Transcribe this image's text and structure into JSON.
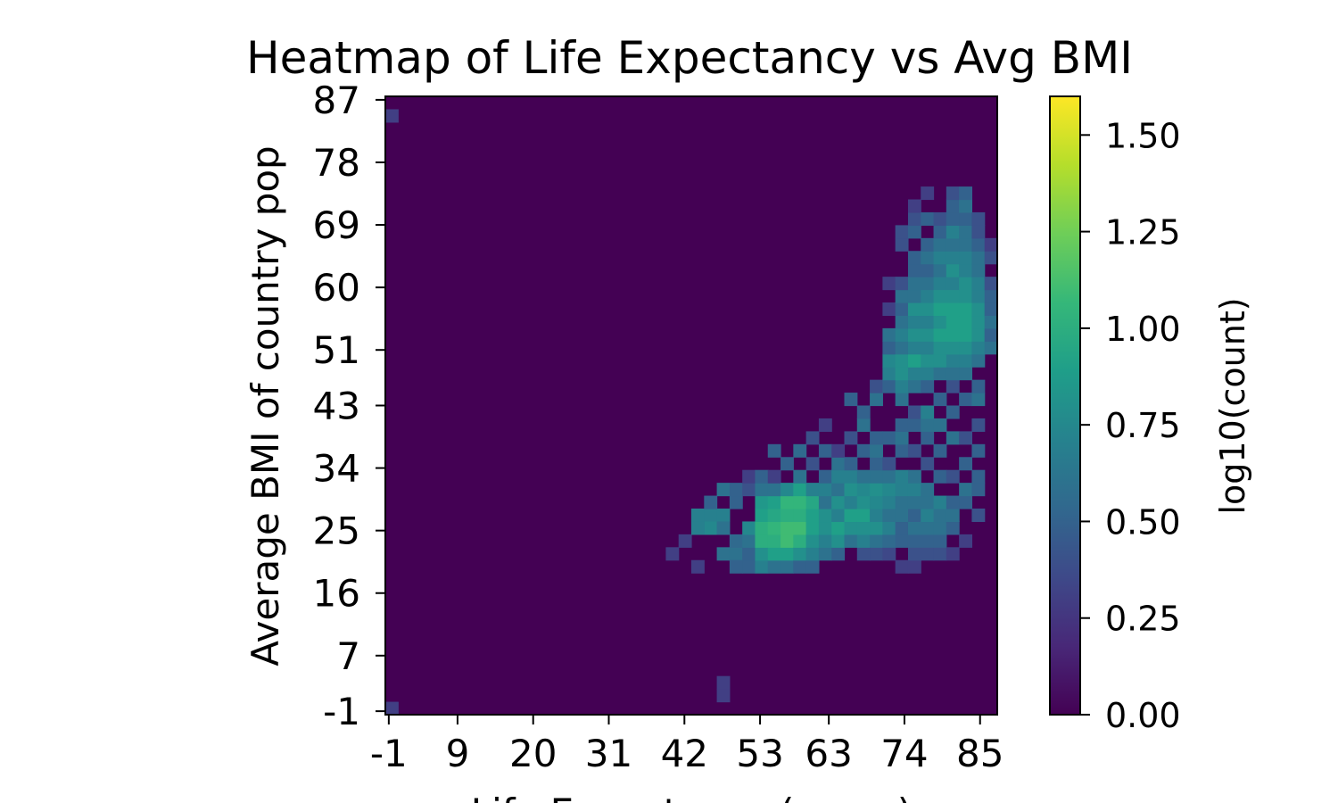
{
  "chart_data": {
    "type": "heatmap",
    "title": "Heatmap of Life Expectancy vs Avg BMI",
    "xlabel": "Life Expectancy (years)",
    "ylabel": "Average BMI of country pop",
    "x_ticks": [
      "-1",
      "9",
      "20",
      "31",
      "42",
      "53",
      "63",
      "74",
      "85"
    ],
    "y_ticks": [
      "-1",
      "7",
      "16",
      "25",
      "34",
      "43",
      "51",
      "60",
      "69",
      "78",
      "87"
    ],
    "xlim": [
      -1.5,
      87.5
    ],
    "ylim": [
      -1.5,
      87.5
    ],
    "bins": [
      48,
      48
    ],
    "colorbar": {
      "label": "log10(count)",
      "ticks": [
        "0.00",
        "0.25",
        "0.50",
        "0.75",
        "1.00",
        "1.25",
        "1.50"
      ],
      "range": [
        0,
        1.6
      ],
      "colormap": "viridis"
    },
    "colormap_stops": [
      "#440154",
      "#482878",
      "#3e4989",
      "#31688e",
      "#26828e",
      "#1f9e89",
      "#35b779",
      "#6ece58",
      "#b5de2b",
      "#fde725"
    ],
    "cells": [
      [
        0,
        0,
        0.3
      ],
      [
        0,
        46,
        0.3
      ],
      [
        26,
        2,
        0.3
      ],
      [
        26,
        1,
        0.3
      ],
      [
        23,
        13,
        0.3
      ],
      [
        22,
        12,
        0.3
      ],
      [
        24,
        11,
        0.3
      ],
      [
        24,
        15,
        0.7
      ],
      [
        25,
        15,
        0.7
      ],
      [
        26,
        15,
        0.7
      ],
      [
        25,
        14,
        0.75
      ],
      [
        24,
        14,
        0.7
      ],
      [
        26,
        14,
        0.6
      ],
      [
        27,
        16,
        0.5
      ],
      [
        25,
        16,
        0.5
      ],
      [
        26,
        17,
        0.6
      ],
      [
        27,
        17,
        0.5
      ],
      [
        28,
        17,
        0.4
      ],
      [
        28,
        18,
        0.3
      ],
      [
        26,
        12,
        0.6
      ],
      [
        27,
        12,
        0.6
      ],
      [
        27,
        13,
        0.55
      ],
      [
        27,
        11,
        0.5
      ],
      [
        28,
        11,
        0.5
      ],
      [
        28,
        12,
        0.5
      ],
      [
        28,
        13,
        0.6
      ],
      [
        28,
        14,
        0.75
      ],
      [
        29,
        11,
        0.7
      ],
      [
        29,
        12,
        0.8
      ],
      [
        29,
        13,
        1.0
      ],
      [
        29,
        14,
        1.0
      ],
      [
        29,
        15,
        0.9
      ],
      [
        29,
        16,
        0.85
      ],
      [
        29,
        17,
        0.6
      ],
      [
        29,
        18,
        0.5
      ],
      [
        30,
        11,
        0.6
      ],
      [
        30,
        12,
        0.9
      ],
      [
        30,
        13,
        1.0
      ],
      [
        30,
        14,
        1.05
      ],
      [
        30,
        15,
        0.95
      ],
      [
        30,
        16,
        0.9
      ],
      [
        30,
        17,
        0.6
      ],
      [
        30,
        18,
        0.3
      ],
      [
        30,
        20,
        0.5
      ],
      [
        31,
        11,
        0.6
      ],
      [
        31,
        12,
        0.9
      ],
      [
        31,
        13,
        1.1
      ],
      [
        31,
        14,
        1.1
      ],
      [
        31,
        15,
        1.0
      ],
      [
        31,
        16,
        1.05
      ],
      [
        31,
        17,
        0.75
      ],
      [
        31,
        19,
        0.5
      ],
      [
        32,
        11,
        0.5
      ],
      [
        32,
        12,
        0.8
      ],
      [
        32,
        13,
        1.0
      ],
      [
        32,
        14,
        1.1
      ],
      [
        32,
        15,
        1.0
      ],
      [
        32,
        16,
        1.05
      ],
      [
        32,
        17,
        0.9
      ],
      [
        32,
        18,
        0.6
      ],
      [
        32,
        20,
        0.55
      ],
      [
        33,
        11,
        0.5
      ],
      [
        33,
        12,
        0.7
      ],
      [
        33,
        13,
        0.8
      ],
      [
        33,
        14,
        0.9
      ],
      [
        33,
        15,
        0.9
      ],
      [
        33,
        16,
        0.95
      ],
      [
        33,
        17,
        0.7
      ],
      [
        33,
        19,
        0.4
      ],
      [
        33,
        21,
        0.4
      ],
      [
        34,
        12,
        0.6
      ],
      [
        34,
        13,
        0.7
      ],
      [
        34,
        14,
        0.8
      ],
      [
        34,
        15,
        0.8
      ],
      [
        34,
        16,
        0.6
      ],
      [
        34,
        17,
        0.7
      ],
      [
        34,
        18,
        0.5
      ],
      [
        34,
        20,
        0.5
      ],
      [
        34,
        22,
        0.3
      ],
      [
        35,
        12,
        0.5
      ],
      [
        35,
        13,
        0.8
      ],
      [
        35,
        14,
        0.9
      ],
      [
        35,
        15,
        0.7
      ],
      [
        35,
        16,
        0.8
      ],
      [
        35,
        17,
        0.6
      ],
      [
        35,
        18,
        0.7
      ],
      [
        35,
        19,
        0.6
      ],
      [
        35,
        20,
        0.3
      ],
      [
        36,
        13,
        0.6
      ],
      [
        36,
        14,
        0.8
      ],
      [
        36,
        15,
        0.9
      ],
      [
        36,
        16,
        0.7
      ],
      [
        36,
        17,
        0.8
      ],
      [
        36,
        18,
        0.7
      ],
      [
        36,
        19,
        0.5
      ],
      [
        36,
        21,
        0.4
      ],
      [
        36,
        24,
        0.5
      ],
      [
        37,
        12,
        0.4
      ],
      [
        37,
        13,
        0.7
      ],
      [
        37,
        14,
        0.8
      ],
      [
        37,
        15,
        0.9
      ],
      [
        37,
        16,
        0.8
      ],
      [
        37,
        17,
        0.75
      ],
      [
        37,
        18,
        0.6
      ],
      [
        37,
        20,
        0.5
      ],
      [
        37,
        22,
        0.6
      ],
      [
        37,
        23,
        0.5
      ],
      [
        38,
        12,
        0.4
      ],
      [
        38,
        13,
        0.6
      ],
      [
        38,
        14,
        0.8
      ],
      [
        38,
        15,
        0.7
      ],
      [
        38,
        16,
        0.75
      ],
      [
        38,
        17,
        0.8
      ],
      [
        38,
        18,
        0.6
      ],
      [
        38,
        19,
        0.5
      ],
      [
        38,
        20,
        0.6
      ],
      [
        38,
        21,
        0.5
      ],
      [
        38,
        24,
        0.6
      ],
      [
        38,
        25,
        0.4
      ],
      [
        39,
        12,
        0.35
      ],
      [
        39,
        13,
        0.55
      ],
      [
        39,
        14,
        0.7
      ],
      [
        39,
        15,
        0.6
      ],
      [
        39,
        16,
        0.7
      ],
      [
        39,
        17,
        0.75
      ],
      [
        39,
        18,
        0.6
      ],
      [
        39,
        19,
        0.4
      ],
      [
        39,
        21,
        0.5
      ],
      [
        39,
        25,
        0.5
      ],
      [
        39,
        26,
        0.7
      ],
      [
        39,
        27,
        0.75
      ],
      [
        39,
        28,
        0.5
      ],
      [
        39,
        29,
        0.6
      ],
      [
        39,
        31,
        0.3
      ],
      [
        39,
        33,
        0.3
      ],
      [
        40,
        11,
        0.3
      ],
      [
        40,
        13,
        0.5
      ],
      [
        40,
        14,
        0.5
      ],
      [
        40,
        15,
        0.6
      ],
      [
        40,
        16,
        0.6
      ],
      [
        40,
        17,
        0.7
      ],
      [
        40,
        18,
        0.7
      ],
      [
        40,
        20,
        0.5
      ],
      [
        40,
        21,
        0.6
      ],
      [
        40,
        22,
        0.5
      ],
      [
        40,
        24,
        0.6
      ],
      [
        40,
        25,
        0.7
      ],
      [
        40,
        26,
        0.8
      ],
      [
        40,
        27,
        0.8
      ],
      [
        40,
        28,
        0.6
      ],
      [
        40,
        29,
        0.7
      ],
      [
        40,
        30,
        0.6
      ],
      [
        40,
        31,
        0.5
      ],
      [
        40,
        32,
        0.6
      ],
      [
        40,
        33,
        0.4
      ],
      [
        40,
        36,
        0.4
      ],
      [
        40,
        37,
        0.4
      ],
      [
        41,
        11,
        0.3
      ],
      [
        41,
        12,
        0.4
      ],
      [
        41,
        13,
        0.5
      ],
      [
        41,
        14,
        0.6
      ],
      [
        41,
        15,
        0.5
      ],
      [
        41,
        16,
        0.6
      ],
      [
        41,
        17,
        0.7
      ],
      [
        41,
        18,
        0.6
      ],
      [
        41,
        20,
        0.4
      ],
      [
        41,
        22,
        0.5
      ],
      [
        41,
        23,
        0.4
      ],
      [
        41,
        25,
        0.6
      ],
      [
        41,
        26,
        0.7
      ],
      [
        41,
        27,
        0.9
      ],
      [
        41,
        28,
        0.7
      ],
      [
        41,
        29,
        0.8
      ],
      [
        41,
        30,
        0.7
      ],
      [
        41,
        31,
        0.8
      ],
      [
        41,
        32,
        0.6
      ],
      [
        41,
        33,
        0.6
      ],
      [
        41,
        34,
        0.5
      ],
      [
        41,
        35,
        0.5
      ],
      [
        41,
        37,
        0.5
      ],
      [
        41,
        38,
        0.4
      ],
      [
        41,
        39,
        0.3
      ],
      [
        42,
        12,
        0.4
      ],
      [
        42,
        13,
        0.5
      ],
      [
        42,
        14,
        0.6
      ],
      [
        42,
        15,
        0.7
      ],
      [
        42,
        16,
        0.6
      ],
      [
        42,
        17,
        0.6
      ],
      [
        42,
        19,
        0.4
      ],
      [
        42,
        21,
        0.5
      ],
      [
        42,
        22,
        0.6
      ],
      [
        42,
        23,
        0.7
      ],
      [
        42,
        25,
        0.5
      ],
      [
        42,
        26,
        0.7
      ],
      [
        42,
        27,
        0.8
      ],
      [
        42,
        28,
        0.7
      ],
      [
        42,
        29,
        0.8
      ],
      [
        42,
        30,
        0.7
      ],
      [
        42,
        31,
        0.8
      ],
      [
        42,
        32,
        0.7
      ],
      [
        42,
        33,
        0.6
      ],
      [
        42,
        34,
        0.5
      ],
      [
        42,
        35,
        0.6
      ],
      [
        42,
        36,
        0.5
      ],
      [
        42,
        38,
        0.5
      ],
      [
        42,
        40,
        0.3
      ],
      [
        43,
        12,
        0.4
      ],
      [
        43,
        13,
        0.5
      ],
      [
        43,
        14,
        0.6
      ],
      [
        43,
        15,
        0.6
      ],
      [
        43,
        16,
        0.7
      ],
      [
        43,
        18,
        0.5
      ],
      [
        43,
        20,
        0.5
      ],
      [
        43,
        22,
        0.6
      ],
      [
        43,
        24,
        0.5
      ],
      [
        43,
        26,
        0.6
      ],
      [
        43,
        27,
        0.8
      ],
      [
        43,
        28,
        0.8
      ],
      [
        43,
        29,
        0.9
      ],
      [
        43,
        30,
        0.8
      ],
      [
        43,
        31,
        0.9
      ],
      [
        43,
        32,
        0.8
      ],
      [
        43,
        33,
        0.7
      ],
      [
        43,
        34,
        0.6
      ],
      [
        43,
        35,
        0.7
      ],
      [
        43,
        36,
        0.6
      ],
      [
        43,
        37,
        0.5
      ],
      [
        43,
        38,
        0.4
      ],
      [
        44,
        12,
        0.3
      ],
      [
        44,
        14,
        0.5
      ],
      [
        44,
        15,
        0.6
      ],
      [
        44,
        16,
        0.5
      ],
      [
        44,
        18,
        0.4
      ],
      [
        44,
        21,
        0.6
      ],
      [
        44,
        23,
        0.5
      ],
      [
        44,
        25,
        0.4
      ],
      [
        44,
        26,
        0.6
      ],
      [
        44,
        27,
        0.7
      ],
      [
        44,
        28,
        0.8
      ],
      [
        44,
        29,
        0.9
      ],
      [
        44,
        30,
        0.9
      ],
      [
        44,
        31,
        0.9
      ],
      [
        44,
        32,
        0.8
      ],
      [
        44,
        33,
        0.7
      ],
      [
        44,
        34,
        0.8
      ],
      [
        44,
        35,
        0.7
      ],
      [
        44,
        36,
        0.6
      ],
      [
        44,
        37,
        0.7
      ],
      [
        44,
        38,
        0.5
      ],
      [
        44,
        39,
        0.5
      ],
      [
        44,
        40,
        0.4
      ],
      [
        45,
        13,
        0.3
      ],
      [
        45,
        16,
        0.5
      ],
      [
        45,
        17,
        0.6
      ],
      [
        45,
        19,
        0.5
      ],
      [
        45,
        21,
        0.4
      ],
      [
        45,
        24,
        0.5
      ],
      [
        45,
        26,
        0.6
      ],
      [
        45,
        27,
        0.7
      ],
      [
        45,
        28,
        0.8
      ],
      [
        45,
        29,
        0.9
      ],
      [
        45,
        30,
        0.9
      ],
      [
        45,
        31,
        0.9
      ],
      [
        45,
        32,
        0.8
      ],
      [
        45,
        33,
        0.8
      ],
      [
        45,
        34,
        0.7
      ],
      [
        45,
        35,
        0.7
      ],
      [
        45,
        36,
        0.6
      ],
      [
        45,
        37,
        0.6
      ],
      [
        45,
        38,
        0.5
      ],
      [
        45,
        39,
        0.6
      ],
      [
        45,
        40,
        0.5
      ],
      [
        46,
        15,
        0.4
      ],
      [
        46,
        17,
        0.5
      ],
      [
        46,
        18,
        0.5
      ],
      [
        46,
        20,
        0.5
      ],
      [
        46,
        22,
        0.4
      ],
      [
        46,
        24,
        0.6
      ],
      [
        46,
        25,
        0.5
      ],
      [
        46,
        27,
        0.6
      ],
      [
        46,
        28,
        0.7
      ],
      [
        46,
        29,
        0.8
      ],
      [
        46,
        30,
        0.8
      ],
      [
        46,
        31,
        0.8
      ],
      [
        46,
        32,
        0.7
      ],
      [
        46,
        33,
        0.7
      ],
      [
        46,
        34,
        0.6
      ],
      [
        46,
        35,
        0.6
      ],
      [
        46,
        36,
        0.5
      ],
      [
        46,
        37,
        0.4
      ],
      [
        46,
        38,
        0.4
      ],
      [
        47,
        28,
        0.6
      ],
      [
        47,
        29,
        0.5
      ],
      [
        47,
        30,
        0.6
      ],
      [
        47,
        31,
        0.5
      ],
      [
        47,
        32,
        0.5
      ],
      [
        47,
        33,
        0.4
      ],
      [
        47,
        35,
        0.4
      ],
      [
        47,
        36,
        0.3
      ]
    ]
  }
}
